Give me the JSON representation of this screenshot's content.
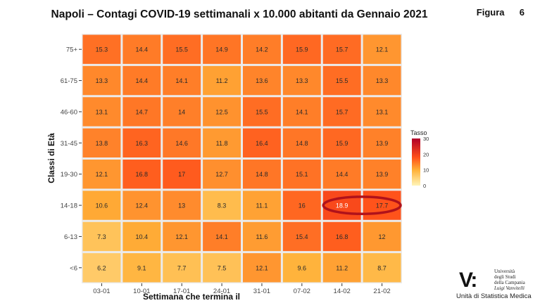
{
  "header": {
    "title": "Napoli – Contagi COVID-19 settimanali x 10.000 abitanti da Gennaio 2021",
    "figure_word": "Figura",
    "figure_number": "6"
  },
  "chart_data": {
    "type": "heatmap",
    "x": [
      "03-01",
      "10-01",
      "17-01",
      "24-01",
      "31-01",
      "07-02",
      "14-02",
      "21-02"
    ],
    "y": [
      "75+",
      "61-75",
      "46-60",
      "31-45",
      "19-30",
      "14-18",
      "6-13",
      "<6"
    ],
    "values": [
      [
        15.3,
        14.4,
        15.5,
        14.9,
        14.2,
        15.9,
        15.7,
        12.1
      ],
      [
        13.3,
        14.4,
        14.1,
        11.2,
        13.6,
        13.3,
        15.5,
        13.3
      ],
      [
        13.1,
        14.7,
        14,
        12.5,
        15.5,
        14.1,
        15.7,
        13.1
      ],
      [
        13.8,
        16.3,
        14.6,
        11.8,
        16.4,
        14.8,
        15.9,
        13.9
      ],
      [
        12.1,
        16.8,
        17,
        12.7,
        14.8,
        15.1,
        14.4,
        13.9
      ],
      [
        10.6,
        12.4,
        13,
        8.3,
        11.1,
        16,
        18.9,
        17.7
      ],
      [
        7.3,
        10.4,
        12.1,
        14.1,
        11.6,
        15.4,
        16.8,
        12
      ],
      [
        6.2,
        9.1,
        7.7,
        7.5,
        12.1,
        9.6,
        11.2,
        8.7
      ]
    ],
    "xlabel": "Settimana che termina il",
    "ylabel": "Classi di Età",
    "legend_title": "Tasso",
    "legend_ticks": [
      0,
      10,
      20,
      30
    ],
    "legend_range": [
      0,
      30
    ],
    "legend_placement": "right",
    "highlight": {
      "row": "14-18",
      "columns": [
        "14-02",
        "21-02"
      ],
      "color": "#b0121b"
    },
    "colors": {
      "low": "#fff5b8",
      "mid": "#ffb138",
      "high": "#ff4f1a",
      "max": "#b0002a",
      "panel": "#ebebeb"
    }
  },
  "logo": {
    "mark": "V:",
    "lines": [
      "Università",
      "degli Studi",
      "della Campania",
      "Luigi Vanvitelli"
    ],
    "unit": "Unità di Statistica Medica"
  }
}
